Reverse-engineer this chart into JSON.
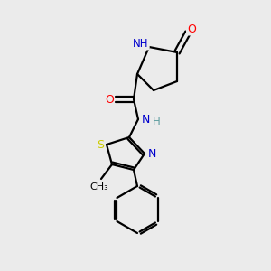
{
  "background_color": "#ebebeb",
  "bond_color": "#000000",
  "atom_colors": {
    "O": "#ff0000",
    "N": "#0000cd",
    "S": "#cccc00",
    "C": "#000000",
    "H": "#5f9ea0"
  },
  "figsize": [
    3.0,
    3.0
  ],
  "dpi": 100
}
